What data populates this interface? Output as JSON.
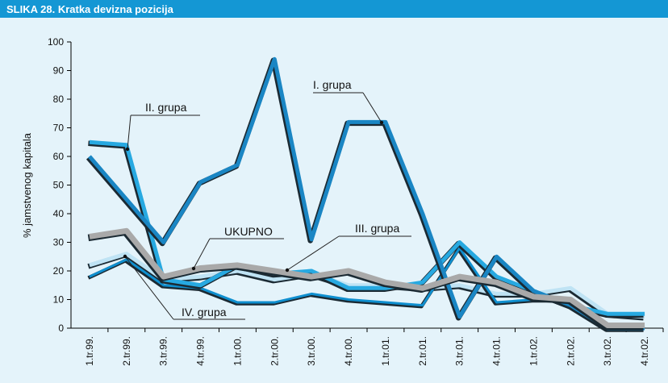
{
  "chart_data": {
    "type": "line",
    "title": "SLIKA 28. Kratka devizna pozicija",
    "y_label": "% jamstvenog kapitala",
    "categories": [
      "1.tr.99.",
      "2.tr.99.",
      "3.tr.99.",
      "4.tr.99.",
      "1.tr.00.",
      "2.tr.00.",
      "3.tr.00.",
      "4.tr.00.",
      "1.tr.01.",
      "2.tr.01.",
      "3.tr.01.",
      "4.tr.01.",
      "1.tr.02.",
      "2.tr.02.",
      "3.tr.02.",
      "4.tr.02."
    ],
    "series": [
      {
        "name": "III. grupa",
        "color": "#bfe3f4",
        "values": [
          22,
          26,
          17,
          18,
          20,
          17,
          19,
          15,
          15,
          14,
          15,
          12,
          12,
          14,
          5,
          4
        ]
      },
      {
        "name": "IV. grupa",
        "color": "#0f8fcf",
        "values": [
          18,
          24,
          15,
          14,
          9,
          9,
          12,
          10,
          9,
          8,
          28,
          9,
          10,
          10,
          0,
          0
        ]
      },
      {
        "name": "II. grupa",
        "color": "#27a9e1",
        "values": [
          65,
          64,
          17,
          15,
          22,
          19,
          20,
          14,
          14,
          16,
          30,
          18,
          13,
          8,
          5,
          5
        ]
      },
      {
        "name": "I. grupa",
        "color": "#1a86c4",
        "values": [
          60,
          45,
          30,
          51,
          57,
          94,
          31,
          72,
          72,
          40,
          4,
          25,
          13,
          8,
          0,
          0
        ]
      },
      {
        "name": "UKUPNO",
        "color": "#a9a9a9",
        "values": [
          32,
          34,
          18,
          21,
          22,
          20,
          18,
          20,
          16,
          14,
          18,
          16,
          11,
          10,
          1,
          1
        ]
      }
    ],
    "ylim": [
      0,
      100
    ],
    "yticks": [
      0,
      10,
      20,
      30,
      40,
      50,
      60,
      70,
      80,
      90,
      100
    ]
  }
}
